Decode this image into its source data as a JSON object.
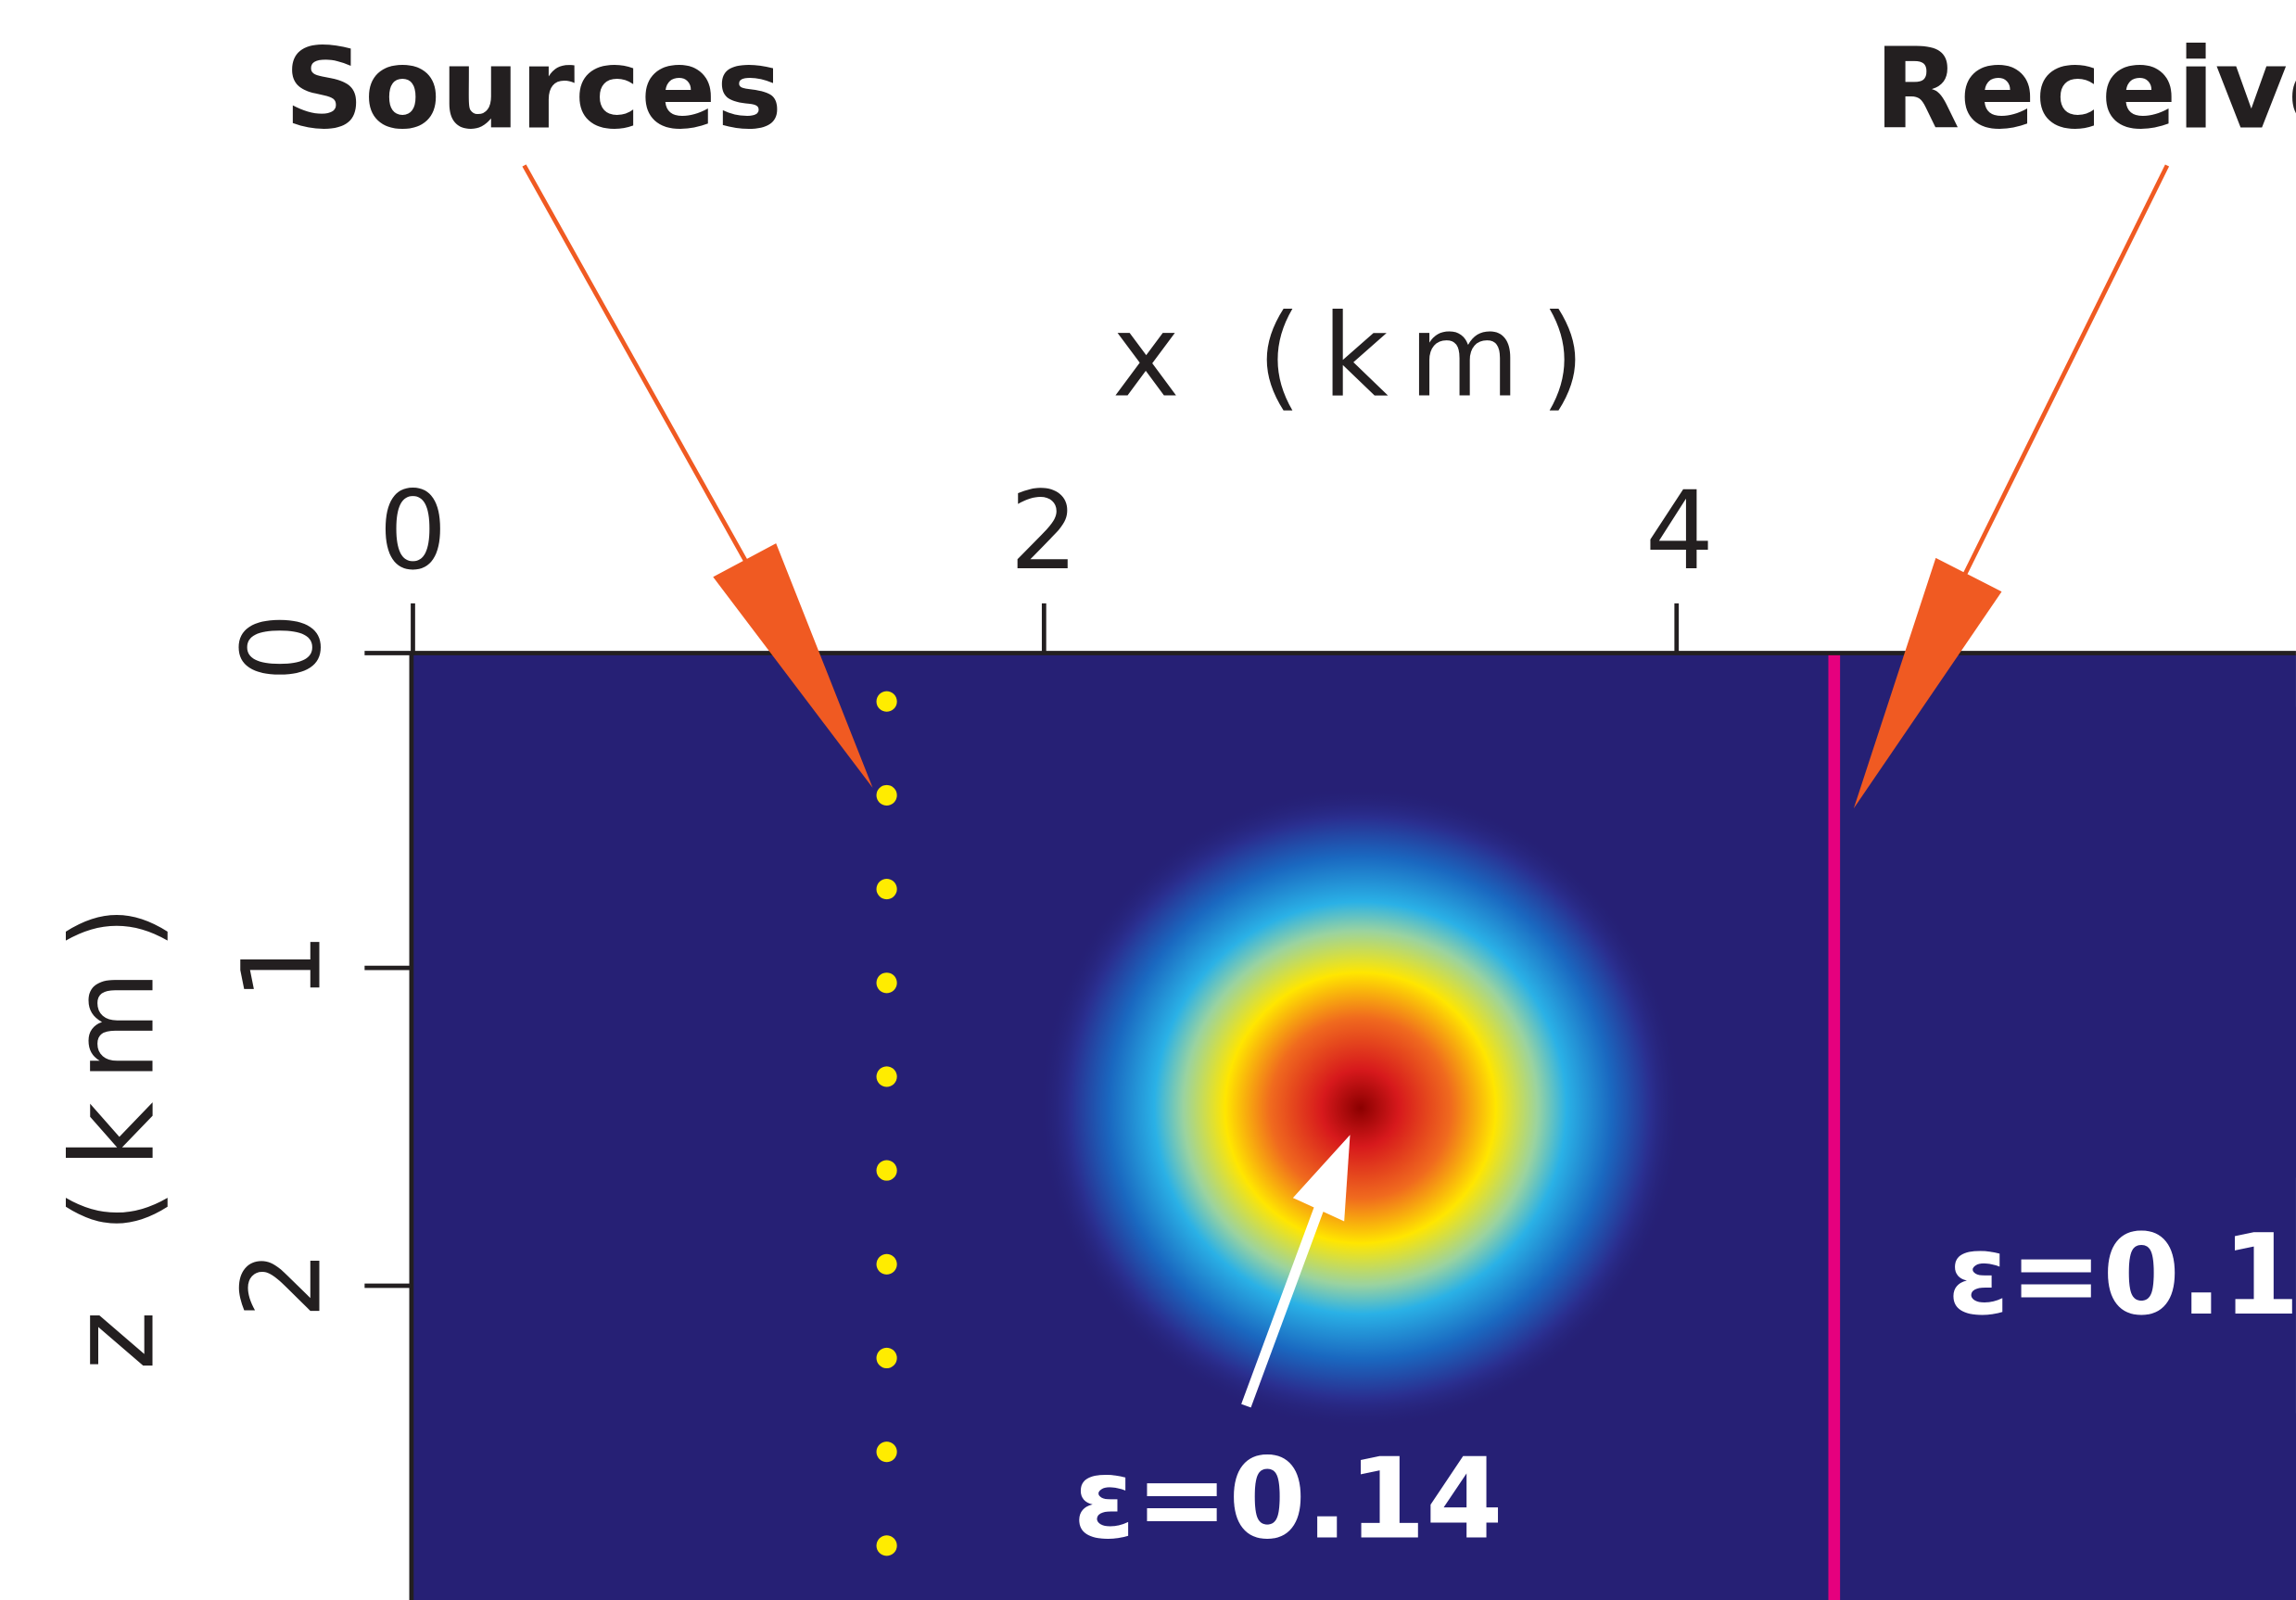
{
  "callouts": {
    "sources": "Sources",
    "receivers": "Receivers"
  },
  "axes": {
    "x_title": "x (km)",
    "z_title": "z (km)",
    "x_ticks": [
      "0",
      "2",
      "4"
    ],
    "z_ticks": [
      "0",
      "1",
      "2"
    ]
  },
  "model": {
    "background_color": "#262075",
    "receiver_line_color": "#e6007e",
    "source_color": "#ffec00",
    "arrow_color": "#f05a22",
    "source_x_km": 1.5,
    "source_depths_km": [
      0.15,
      0.45,
      0.75,
      1.05,
      1.35,
      1.65,
      1.95,
      2.25,
      2.55,
      2.85
    ],
    "receiver_x_km": 4.5,
    "anomaly_center_km": [
      3.0,
      1.45
    ],
    "anomaly_epsilon": "ε=0.14",
    "background_epsilon": "ε=0.1"
  }
}
